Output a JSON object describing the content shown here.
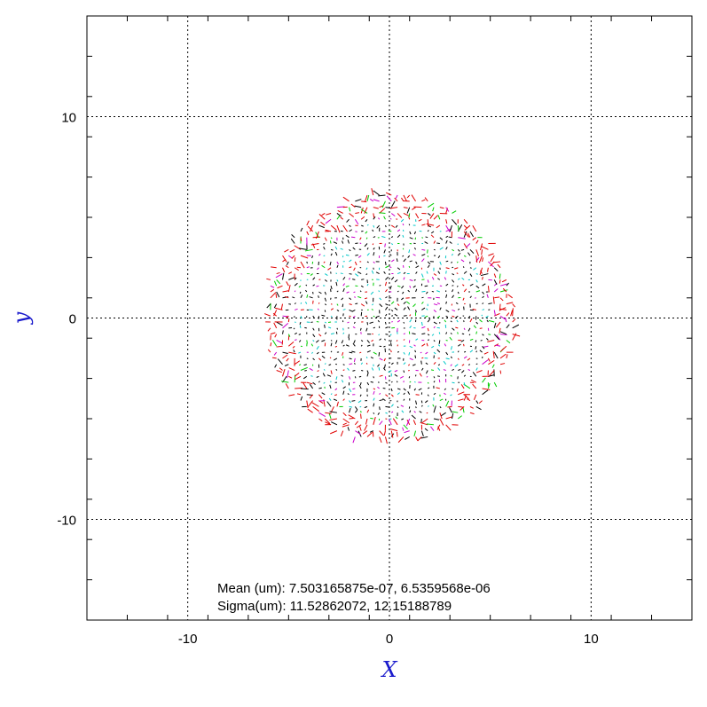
{
  "chart_data": {
    "type": "scatter",
    "title": "",
    "xlabel": "X",
    "ylabel": "y",
    "xlim": [
      -15,
      15
    ],
    "ylim": [
      -15,
      15
    ],
    "x_ticks": [
      -10,
      0,
      10
    ],
    "y_ticks": [
      -10,
      0,
      10
    ],
    "x_tick_labels": [
      "-10",
      "0",
      "10"
    ],
    "y_tick_labels": [
      "-10",
      "0",
      "10"
    ],
    "minor_tick_step": 2,
    "grid": true,
    "grid_style": "dotted",
    "spot": {
      "shape": "circular grid of ray vectors",
      "center": [
        0,
        0
      ],
      "radius": 6.2,
      "grid_step": 0.3,
      "colors": [
        "#000000",
        "#00c8c8",
        "#cc00cc",
        "#00cc00",
        "#e00000"
      ]
    },
    "annotations": {
      "mean_line": "Mean (um): 7.503165875e-07, 6.5359568e-06",
      "sigma_line": "Sigma(um): 11.52862072, 12.15188789"
    }
  }
}
